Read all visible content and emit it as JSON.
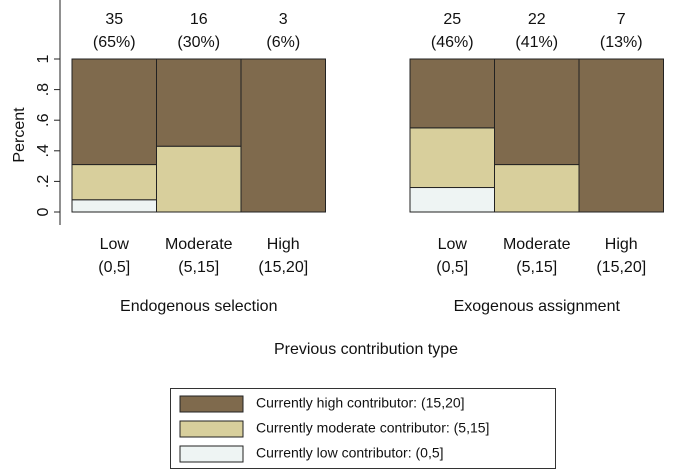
{
  "chart_data": {
    "type": "stacked-bar",
    "y_label": "Percent",
    "x_label": "Previous contribution type",
    "ylim": [
      0,
      1
    ],
    "yticks": [
      0,
      {
        "value": 0.2,
        "label": ".2"
      },
      {
        "value": 0.4,
        "label": ".4"
      },
      {
        "value": 0.6,
        "label": ".6"
      },
      {
        "value": 0.8,
        "label": ".8"
      },
      1
    ],
    "groups": [
      "Endogenous selection",
      "Exogenous assignment"
    ],
    "categories": [
      "Low",
      "Moderate",
      "High",
      "Low",
      "Moderate",
      "High"
    ],
    "category_ranges": [
      "(0,5]",
      "(5,15]",
      "(15,20]",
      "(0,5]",
      "(5,15]",
      "(15,20]"
    ],
    "totals": {
      "values": [
        35,
        16,
        3,
        25,
        22,
        7
      ]
    },
    "shares": {
      "values": [
        65,
        30,
        6,
        46,
        41,
        13
      ],
      "value_labels": [
        "(65%)",
        "(30%)",
        "(6%)",
        "(46%)",
        "(41%)",
        "(13%)"
      ]
    },
    "series": [
      {
        "name": "Currently low contributor: (0,5]",
        "color": "#eef4f3",
        "values": [
          0.08,
          0,
          0,
          0.16,
          0,
          0
        ]
      },
      {
        "name": "Currently moderate contributor: (5,15]",
        "color": "#d8cf9c",
        "values": [
          0.23,
          0.43,
          0,
          0.39,
          0.31,
          0
        ]
      },
      {
        "name": "Currently high contributor: (15,20]",
        "color": "#7f6a4d",
        "values": [
          0.69,
          0.57,
          1,
          0.45,
          0.69,
          1
        ]
      }
    ]
  }
}
